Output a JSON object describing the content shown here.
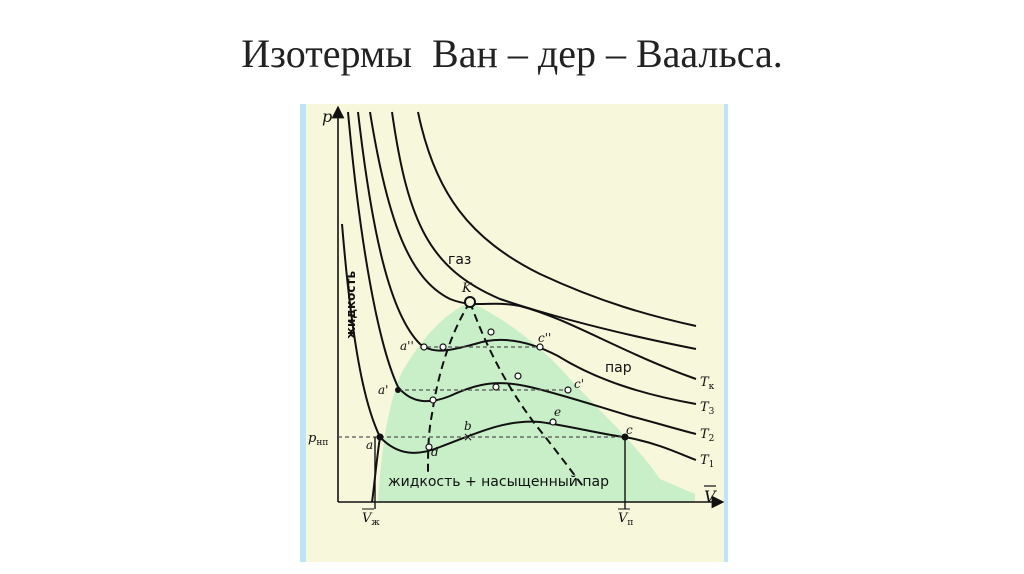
{
  "slide": {
    "title": "Изотермы  Ван – дер – Ваальса."
  },
  "diagram": {
    "axis_p": "p",
    "axis_v": "V",
    "region_gas": "газ",
    "region_liquid": "жидкость",
    "region_vapor": "пар",
    "region_two_phase": "жидкость + насыщенный пар",
    "critical_point": "K",
    "pressure_label": "p",
    "pressure_subscript": "нп",
    "v_liquid": "V",
    "v_liquid_sub": "ж",
    "v_vapor": "V",
    "v_vapor_sub": "п",
    "point_a": "a",
    "point_a1": "a'",
    "point_a2": "a''",
    "point_b": "b",
    "point_c": "c",
    "point_c1": "c'",
    "point_c2": "c''",
    "point_d": "d",
    "point_e": "e",
    "isotherm_labels": [
      {
        "t": "T",
        "sub": "к"
      },
      {
        "t": "T",
        "sub": "3"
      },
      {
        "t": "T",
        "sub": "2"
      },
      {
        "t": "T",
        "sub": "1"
      }
    ],
    "colors": {
      "background": "#f7f7dc",
      "two_phase_fill": "#c9efc9",
      "border_blue": "#b9dff5",
      "curve": "#111111"
    }
  }
}
